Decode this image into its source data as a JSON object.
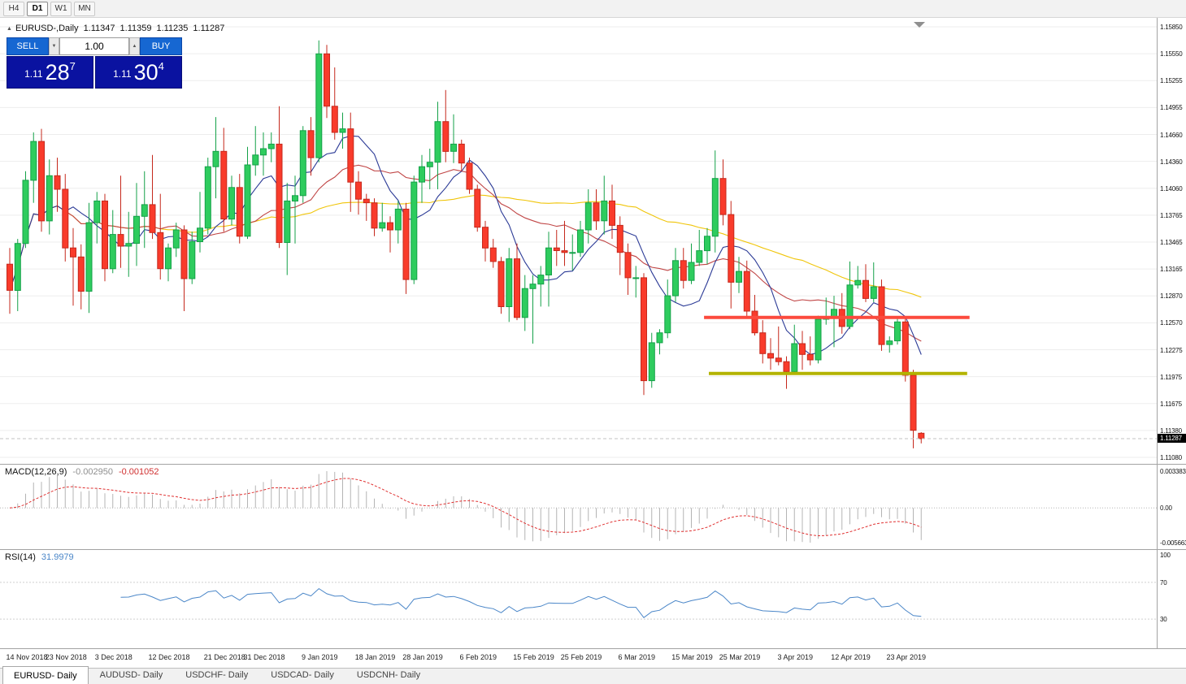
{
  "toolbar": {
    "timeframes": [
      "H4",
      "D1",
      "W1",
      "MN"
    ],
    "active": "D1"
  },
  "icons": {
    "collapse": "▲",
    "spin_down": "▼",
    "spin_up": "▲",
    "shift_marker": "▼"
  },
  "colors": {
    "bull": "#2ecc5e",
    "bull_border": "#14a148",
    "bear": "#f93b2b",
    "bear_border": "#c5281c",
    "macd_hist": "#b4b4b4",
    "macd_signal": "#e03030",
    "rsi": "#4a86c8",
    "resistance": "#fc4a3d",
    "support": "#b3b300",
    "trade_button": "#1667d2",
    "trade_panel_bg": "#0a12a0",
    "price_tag_bg": "#000000"
  },
  "chart": {
    "header": {
      "symbol": "EURUSD-,Daily",
      "open": "1.11347",
      "high": "1.11359",
      "low": "1.11235",
      "close": "1.11287"
    },
    "trade_panel": {
      "sell_label": "SELL",
      "buy_label": "BUY",
      "volume": "1.00",
      "sell_price_prefix": "1.11",
      "sell_price_big": "28",
      "sell_price_sup": "7",
      "buy_price_prefix": "1.11",
      "buy_price_big": "30",
      "buy_price_sup": "4"
    },
    "price_axis_labels": [
      "1.15850",
      "1.15550",
      "1.15255",
      "1.14955",
      "1.14660",
      "1.14360",
      "1.14060",
      "1.13765",
      "1.13465",
      "1.13165",
      "1.12870",
      "1.12570",
      "1.12275",
      "1.11975",
      "1.11675",
      "1.11380",
      "1.11080"
    ],
    "current_price_tag": "1.11287"
  },
  "macd": {
    "name": "MACD(12,26,9)",
    "main": "-0.002950",
    "signal": "-0.001052",
    "axis_top": "0.003383",
    "axis_zero": "0.00",
    "axis_bottom": "-0.005663"
  },
  "rsi": {
    "name": "RSI(14)",
    "value": "31.9979",
    "levels": [
      "100",
      "70",
      "30"
    ]
  },
  "time_axis": [
    {
      "text": "14 Nov 2018",
      "bar": 0
    },
    {
      "text": "23 Nov 2018",
      "bar": 7
    },
    {
      "text": "3 Dec 2018",
      "bar": 13
    },
    {
      "text": "12 Dec 2018",
      "bar": 20
    },
    {
      "text": "21 Dec 2018",
      "bar": 27
    },
    {
      "text": "31 Dec 2018",
      "bar": 32
    },
    {
      "text": "9 Jan 2019",
      "bar": 39
    },
    {
      "text": "18 Jan 2019",
      "bar": 46
    },
    {
      "text": "28 Jan 2019",
      "bar": 52
    },
    {
      "text": "6 Feb 2019",
      "bar": 59
    },
    {
      "text": "15 Feb 2019",
      "bar": 66
    },
    {
      "text": "25 Feb 2019",
      "bar": 72
    },
    {
      "text": "6 Mar 2019",
      "bar": 79
    },
    {
      "text": "15 Mar 2019",
      "bar": 86
    },
    {
      "text": "25 Mar 2019",
      "bar": 92
    },
    {
      "text": "3 Apr 2019",
      "bar": 99
    },
    {
      "text": "12 Apr 2019",
      "bar": 106
    },
    {
      "text": "23 Apr 2019",
      "bar": 113
    }
  ],
  "tabs": [
    {
      "label": "EURUSD- Daily",
      "active": true
    },
    {
      "label": "AUDUSD- Daily",
      "active": false
    },
    {
      "label": "USDCHF- Daily",
      "active": false
    },
    {
      "label": "USDCAD- Daily",
      "active": false
    },
    {
      "label": "USDCNH- Daily",
      "active": false
    }
  ],
  "chart_data": {
    "type": "candlestick",
    "title": "EURUSD-,Daily",
    "y_axis": {
      "max": 1.1585,
      "min": 1.1108
    },
    "current_price": 1.11287,
    "indicators": {
      "macd": {
        "fast": 12,
        "slow": 26,
        "signal": 9
      },
      "rsi": {
        "period": 14
      }
    },
    "moving_averages": [
      {
        "period": 8,
        "color": "#2b3a96"
      },
      {
        "period": 20,
        "color": "#c04545"
      },
      {
        "period": 50,
        "color": "#f0c50a"
      }
    ],
    "hlines": [
      {
        "price": 1.1263,
        "from_bar": 87.6,
        "to_bar": 121.1,
        "color": "#fc4a3d",
        "width": 4
      },
      {
        "price": 1.1201,
        "from_bar": 88.2,
        "to_bar": 120.8,
        "color": "#b3b300",
        "width": 4
      }
    ],
    "ohlc": [
      [
        1.1322,
        1.134,
        1.1267,
        1.1293
      ],
      [
        1.1293,
        1.135,
        1.127,
        1.1345
      ],
      [
        1.1345,
        1.1425,
        1.134,
        1.1415
      ],
      [
        1.1415,
        1.1468,
        1.139,
        1.1458
      ],
      [
        1.1458,
        1.1472,
        1.1358,
        1.137
      ],
      [
        1.137,
        1.1438,
        1.1355,
        1.142
      ],
      [
        1.142,
        1.144,
        1.138,
        1.1405
      ],
      [
        1.1405,
        1.1422,
        1.1325,
        1.134
      ],
      [
        1.134,
        1.1362,
        1.1276,
        1.133
      ],
      [
        1.133,
        1.1344,
        1.1272,
        1.1292
      ],
      [
        1.1292,
        1.139,
        1.1268,
        1.1368
      ],
      [
        1.1368,
        1.1402,
        1.1345,
        1.1392
      ],
      [
        1.1392,
        1.14,
        1.1303,
        1.1317
      ],
      [
        1.1317,
        1.1382,
        1.1312,
        1.1355
      ],
      [
        1.1355,
        1.142,
        1.1318,
        1.1342
      ],
      [
        1.1342,
        1.138,
        1.1308,
        1.1345
      ],
      [
        1.1345,
        1.1412,
        1.132,
        1.1375
      ],
      [
        1.1375,
        1.1425,
        1.134,
        1.1388
      ],
      [
        1.1388,
        1.1443,
        1.135,
        1.1357
      ],
      [
        1.1357,
        1.14,
        1.1305,
        1.1317
      ],
      [
        1.1317,
        1.1345,
        1.1303,
        1.134
      ],
      [
        1.134,
        1.1368,
        1.133,
        1.136
      ],
      [
        1.136,
        1.1365,
        1.127,
        1.1306
      ],
      [
        1.1306,
        1.1358,
        1.13,
        1.1347
      ],
      [
        1.1347,
        1.1402,
        1.1335,
        1.1362
      ],
      [
        1.1362,
        1.144,
        1.1355,
        1.143
      ],
      [
        1.143,
        1.1485,
        1.1395,
        1.1447
      ],
      [
        1.1447,
        1.1473,
        1.1358,
        1.1372
      ],
      [
        1.1372,
        1.142,
        1.1365,
        1.1407
      ],
      [
        1.1407,
        1.1422,
        1.1345,
        1.1353
      ],
      [
        1.1353,
        1.1452,
        1.135,
        1.1432
      ],
      [
        1.1432,
        1.1475,
        1.142,
        1.1443
      ],
      [
        1.1443,
        1.1468,
        1.142,
        1.145
      ],
      [
        1.145,
        1.1468,
        1.1435,
        1.1455
      ],
      [
        1.1455,
        1.1497,
        1.134,
        1.1346
      ],
      [
        1.1346,
        1.1412,
        1.131,
        1.1392
      ],
      [
        1.1392,
        1.142,
        1.1345,
        1.1398
      ],
      [
        1.1398,
        1.1475,
        1.139,
        1.147
      ],
      [
        1.147,
        1.1485,
        1.142,
        1.144
      ],
      [
        1.144,
        1.157,
        1.1435,
        1.1555
      ],
      [
        1.1555,
        1.1565,
        1.1484,
        1.1497
      ],
      [
        1.1497,
        1.154,
        1.146,
        1.1468
      ],
      [
        1.1468,
        1.149,
        1.145,
        1.1472
      ],
      [
        1.1472,
        1.149,
        1.138,
        1.1413
      ],
      [
        1.1413,
        1.1425,
        1.1377,
        1.1394
      ],
      [
        1.1394,
        1.14,
        1.137,
        1.139
      ],
      [
        1.139,
        1.1395,
        1.1353,
        1.1362
      ],
      [
        1.1362,
        1.139,
        1.1358,
        1.1368
      ],
      [
        1.1368,
        1.1375,
        1.1335,
        1.136
      ],
      [
        1.136,
        1.1392,
        1.1345,
        1.1383
      ],
      [
        1.1383,
        1.139,
        1.1289,
        1.1305
      ],
      [
        1.1305,
        1.142,
        1.13,
        1.1413
      ],
      [
        1.1413,
        1.1443,
        1.139,
        1.143
      ],
      [
        1.143,
        1.145,
        1.1405,
        1.1435
      ],
      [
        1.1435,
        1.1502,
        1.1405,
        1.148
      ],
      [
        1.148,
        1.1515,
        1.1435,
        1.1447
      ],
      [
        1.1447,
        1.1488,
        1.1434,
        1.1455
      ],
      [
        1.1455,
        1.146,
        1.1425,
        1.1434
      ],
      [
        1.1434,
        1.144,
        1.14,
        1.1405
      ],
      [
        1.1405,
        1.141,
        1.1358,
        1.1363
      ],
      [
        1.1363,
        1.137,
        1.1325,
        1.134
      ],
      [
        1.134,
        1.135,
        1.1318,
        1.1325
      ],
      [
        1.1325,
        1.133,
        1.1267,
        1.1275
      ],
      [
        1.1275,
        1.134,
        1.1258,
        1.1328
      ],
      [
        1.1328,
        1.1345,
        1.126,
        1.1263
      ],
      [
        1.1263,
        1.131,
        1.1248,
        1.1295
      ],
      [
        1.1295,
        1.131,
        1.1234,
        1.13
      ],
      [
        1.13,
        1.132,
        1.1275,
        1.131
      ],
      [
        1.131,
        1.1358,
        1.1275,
        1.134
      ],
      [
        1.134,
        1.136,
        1.132,
        1.1337
      ],
      [
        1.1337,
        1.137,
        1.132,
        1.1335
      ],
      [
        1.1335,
        1.1355,
        1.1315,
        1.1335
      ],
      [
        1.1335,
        1.137,
        1.133,
        1.136
      ],
      [
        1.136,
        1.1405,
        1.1345,
        1.139
      ],
      [
        1.139,
        1.1405,
        1.136,
        1.137
      ],
      [
        1.137,
        1.142,
        1.1355,
        1.1392
      ],
      [
        1.1392,
        1.141,
        1.135,
        1.1365
      ],
      [
        1.1365,
        1.1375,
        1.131,
        1.1335
      ],
      [
        1.1335,
        1.1345,
        1.1288,
        1.1307
      ],
      [
        1.1307,
        1.132,
        1.1285,
        1.1307
      ],
      [
        1.1307,
        1.1312,
        1.1177,
        1.1193
      ],
      [
        1.1193,
        1.1246,
        1.1185,
        1.1235
      ],
      [
        1.1235,
        1.125,
        1.1222,
        1.1246
      ],
      [
        1.1246,
        1.1305,
        1.124,
        1.1287
      ],
      [
        1.1287,
        1.134,
        1.128,
        1.1326
      ],
      [
        1.1326,
        1.134,
        1.1295,
        1.1304
      ],
      [
        1.1304,
        1.1345,
        1.13,
        1.1324
      ],
      [
        1.1324,
        1.136,
        1.132,
        1.1337
      ],
      [
        1.1337,
        1.1362,
        1.1322,
        1.1353
      ],
      [
        1.1353,
        1.1448,
        1.1335,
        1.1417
      ],
      [
        1.1417,
        1.1438,
        1.1365,
        1.1377
      ],
      [
        1.1377,
        1.1392,
        1.1273,
        1.1302
      ],
      [
        1.1302,
        1.133,
        1.129,
        1.1314
      ],
      [
        1.1314,
        1.1326,
        1.1264,
        1.127
      ],
      [
        1.127,
        1.1288,
        1.1243,
        1.1246
      ],
      [
        1.1246,
        1.126,
        1.1212,
        1.1223
      ],
      [
        1.1223,
        1.124,
        1.1205,
        1.1218
      ],
      [
        1.1218,
        1.1253,
        1.121,
        1.1214
      ],
      [
        1.1214,
        1.122,
        1.1184,
        1.1203
      ],
      [
        1.1203,
        1.1255,
        1.12,
        1.1234
      ],
      [
        1.1234,
        1.1248,
        1.1205,
        1.1222
      ],
      [
        1.1222,
        1.1242,
        1.121,
        1.1216
      ],
      [
        1.1216,
        1.1265,
        1.1212,
        1.1261
      ],
      [
        1.1261,
        1.1285,
        1.1255,
        1.1264
      ],
      [
        1.1264,
        1.1287,
        1.123,
        1.1272
      ],
      [
        1.1272,
        1.129,
        1.1245,
        1.1253
      ],
      [
        1.1253,
        1.1325,
        1.125,
        1.1299
      ],
      [
        1.1299,
        1.132,
        1.1295,
        1.1304
      ],
      [
        1.1304,
        1.1322,
        1.128,
        1.1284
      ],
      [
        1.1284,
        1.1324,
        1.128,
        1.1297
      ],
      [
        1.1297,
        1.1305,
        1.1226,
        1.1233
      ],
      [
        1.1233,
        1.1242,
        1.1224,
        1.1237
      ],
      [
        1.1237,
        1.1264,
        1.1233,
        1.1258
      ],
      [
        1.1258,
        1.1264,
        1.1192,
        1.1199
      ],
      [
        1.1199,
        1.1205,
        1.1118,
        1.1138
      ],
      [
        1.11347,
        1.11359,
        1.11235,
        1.11287
      ]
    ]
  }
}
